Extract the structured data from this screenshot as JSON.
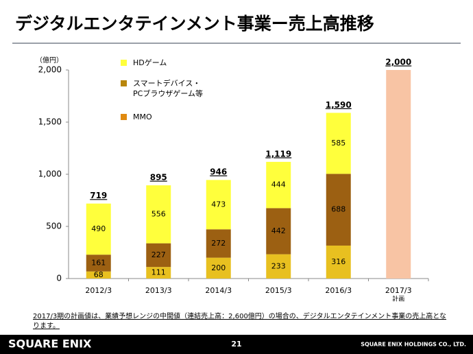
{
  "title": "デジタルエンタテインメント事業ー売上高推移",
  "chart_data": {
    "type": "stacked_bar",
    "unit_label": "（億円）",
    "categories": [
      "2012/3",
      "2013/3",
      "2014/3",
      "2015/3",
      "2016/3",
      "2017/3"
    ],
    "category_note": "計画",
    "series": [
      {
        "name": "MMO",
        "color": "#e8c020",
        "legend_color": "#e08a10",
        "values": [
          68,
          111,
          200,
          233,
          316,
          null
        ]
      },
      {
        "name": "スマートデバイス・\nPCブラウザゲーム等",
        "color": "#9c6012",
        "legend_color": "#b8860b",
        "values": [
          161,
          227,
          272,
          442,
          688,
          null
        ]
      },
      {
        "name": "HDゲーム",
        "color": "#ffff3c",
        "legend_color": "#ffff3c",
        "values": [
          490,
          556,
          473,
          444,
          585,
          null
        ]
      }
    ],
    "plan": {
      "color": "#f8c4a4",
      "values": [
        null,
        null,
        null,
        null,
        null,
        2000
      ]
    },
    "totals": {
      "values": [
        719,
        895,
        946,
        1119,
        1590,
        2000
      ],
      "value_labels": [
        "719",
        "895",
        "946",
        "1,119",
        "1,590",
        "2,000"
      ]
    },
    "ylim": [
      0,
      2000
    ],
    "yticks": [
      0,
      500,
      {
        "value": 1000,
        "label": "1,000"
      },
      {
        "value": 1500,
        "label": "1,500"
      },
      {
        "value": 2000,
        "label": "2,000"
      }
    ]
  },
  "footnote": "2017/3期の計画値は、業績予想レンジの中間値（連結売上高：2,600億円）の場合の、デジタルエンタテインメント事業の売上高となります。",
  "footer": {
    "logo": "SQUARE ENIX",
    "page": "21",
    "company": "SQUARE ENIX HOLDINGS CO., LTD."
  }
}
